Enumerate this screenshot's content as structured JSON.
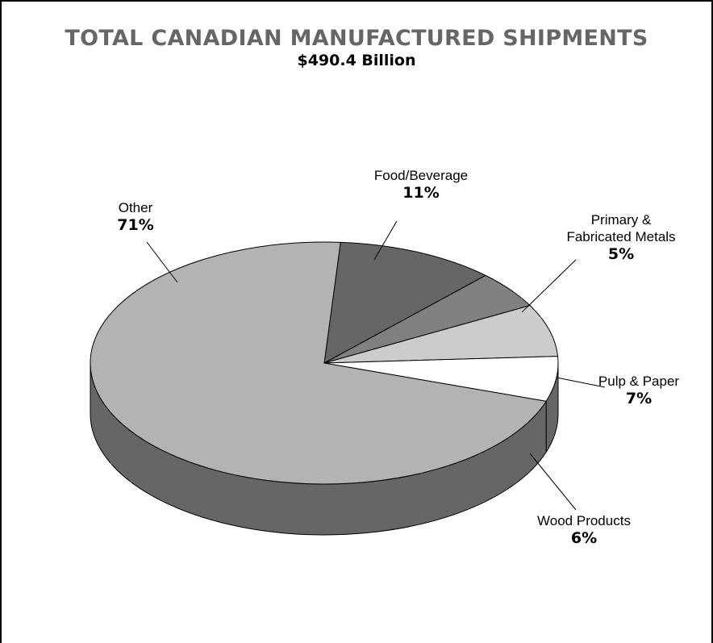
{
  "chart_data": {
    "type": "pie3d",
    "title": "TOTAL CANADIAN MANUFACTURED SHIPMENTS",
    "subtitle": "$490.4 Billion",
    "categories": [
      "Food/Beverage",
      "Primary & Fabricated Metals",
      "Pulp & Paper",
      "Wood Products",
      "Other"
    ],
    "values": [
      11,
      5,
      7,
      6,
      71
    ],
    "value_labels": [
      "11%",
      "5%",
      "7%",
      "6%",
      "71%"
    ],
    "colors": [
      "#666666",
      "#808080",
      "#cccccc",
      "#ffffff",
      "#b3b3b3"
    ],
    "side_color": "#666666"
  }
}
